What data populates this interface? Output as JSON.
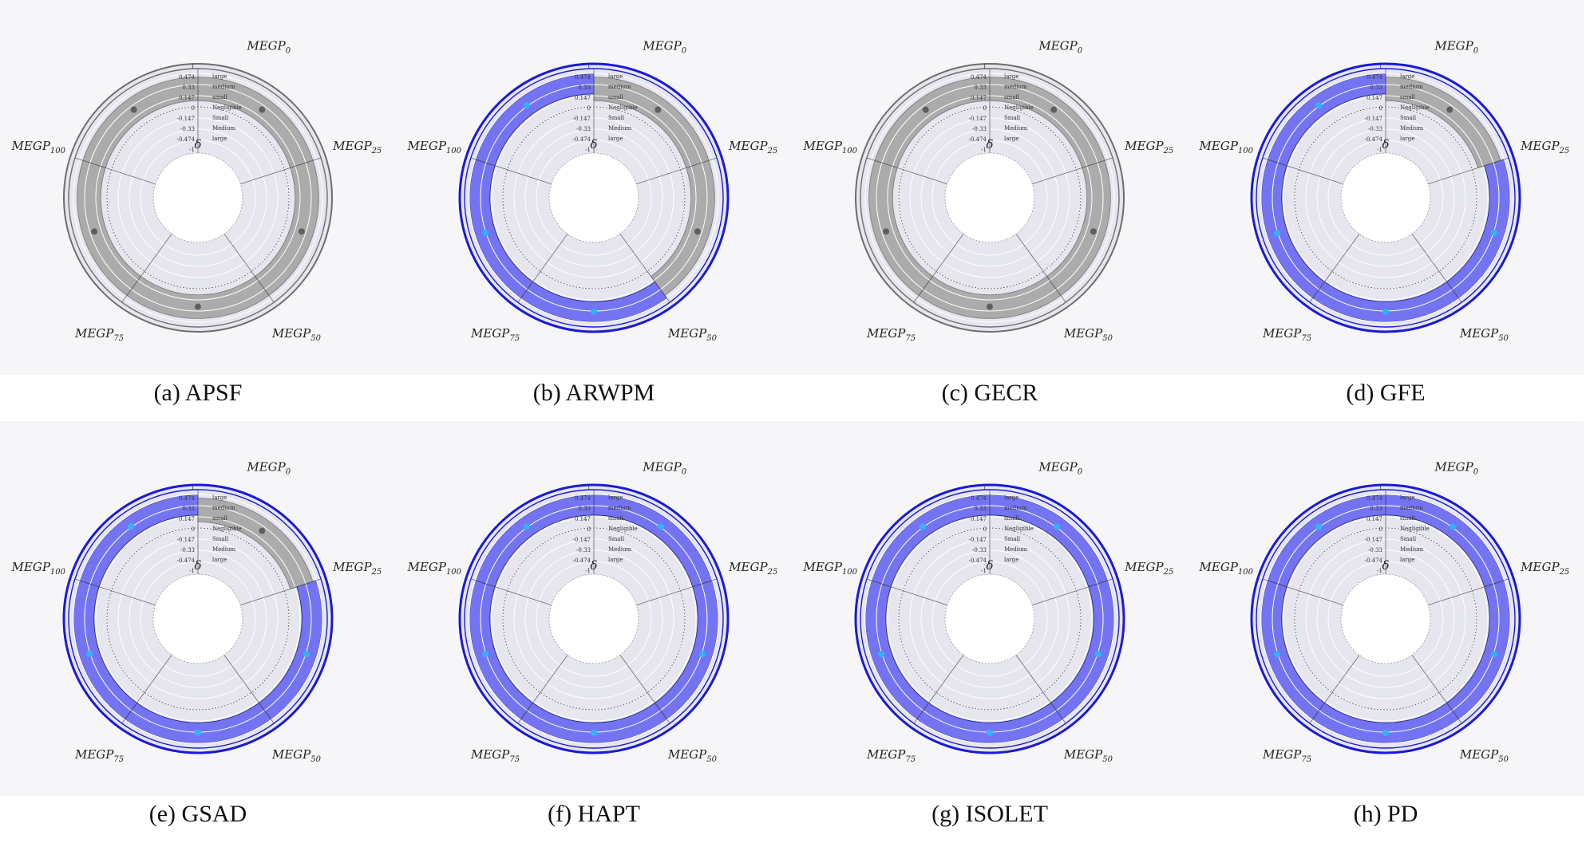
{
  "colors": {
    "bg_panel": "#f6f6f8",
    "disc": "#e6e6ef",
    "gray_band": "#a8a8a8",
    "gray_point": "#5f5f5f",
    "gray_rim": "#6d6d6d",
    "blue_band": "#6e6ef2",
    "blue_point": "#2fb4f5",
    "blue_rim": "#1a1ad6",
    "grid": "#ffffff"
  },
  "axis_main": "MEGP",
  "center_symbol": "δ",
  "radial_ticks": [
    "1",
    "0.474",
    "0.33",
    "0.147",
    "0",
    "-0.147",
    "-0.33",
    "-0.474",
    "-1"
  ],
  "magnitude_labels": [
    "large",
    "medium",
    "small",
    "Negligible",
    "Small",
    "Medium",
    "large"
  ],
  "chart_data": [
    {
      "type": "polar_band",
      "caption": "(a) APSF",
      "rim_color": "gray",
      "axes": [
        {
          "label": "MEGP",
          "sub": "0",
          "value": 0.1,
          "highlight": "gray"
        },
        {
          "label": "MEGP",
          "sub": "25",
          "value": 0.1,
          "highlight": "gray"
        },
        {
          "label": "MEGP",
          "sub": "50",
          "value": 0.1,
          "highlight": "gray"
        },
        {
          "label": "MEGP",
          "sub": "75",
          "value": 0.1,
          "highlight": "gray"
        },
        {
          "label": "MEGP",
          "sub": "100",
          "value": 0.1,
          "highlight": "gray"
        }
      ]
    },
    {
      "type": "polar_band",
      "caption": "(b) ARWPM",
      "rim_color": "blue",
      "axes": [
        {
          "label": "MEGP",
          "sub": "0",
          "value": 0.2,
          "highlight": "gray"
        },
        {
          "label": "MEGP",
          "sub": "25",
          "value": 0.15,
          "highlight": "gray"
        },
        {
          "label": "MEGP",
          "sub": "50",
          "value": 0.7,
          "highlight": "blue"
        },
        {
          "label": "MEGP",
          "sub": "75",
          "value": 0.7,
          "highlight": "blue"
        },
        {
          "label": "MEGP",
          "sub": "100",
          "value": 0.7,
          "highlight": "blue"
        }
      ]
    },
    {
      "type": "polar_band",
      "caption": "(c) GECR",
      "rim_color": "gray",
      "axes": [
        {
          "label": "MEGP",
          "sub": "0",
          "value": 0.1,
          "highlight": "gray"
        },
        {
          "label": "MEGP",
          "sub": "25",
          "value": 0.1,
          "highlight": "gray"
        },
        {
          "label": "MEGP",
          "sub": "50",
          "value": 0.1,
          "highlight": "gray"
        },
        {
          "label": "MEGP",
          "sub": "75",
          "value": 0.1,
          "highlight": "gray"
        },
        {
          "label": "MEGP",
          "sub": "100",
          "value": 0.1,
          "highlight": "gray"
        }
      ]
    },
    {
      "type": "polar_band",
      "caption": "(d) GFE",
      "rim_color": "blue",
      "axes": [
        {
          "label": "MEGP",
          "sub": "0",
          "value": 0.2,
          "highlight": "gray"
        },
        {
          "label": "MEGP",
          "sub": "25",
          "value": 0.8,
          "highlight": "blue"
        },
        {
          "label": "MEGP",
          "sub": "50",
          "value": 0.8,
          "highlight": "blue"
        },
        {
          "label": "MEGP",
          "sub": "75",
          "value": 0.8,
          "highlight": "blue"
        },
        {
          "label": "MEGP",
          "sub": "100",
          "value": 0.8,
          "highlight": "blue"
        }
      ]
    },
    {
      "type": "polar_band",
      "caption": "(e) GSAD",
      "rim_color": "blue",
      "axes": [
        {
          "label": "MEGP",
          "sub": "0",
          "value": 0.2,
          "highlight": "gray"
        },
        {
          "label": "MEGP",
          "sub": "25",
          "value": 0.8,
          "highlight": "blue"
        },
        {
          "label": "MEGP",
          "sub": "50",
          "value": 0.8,
          "highlight": "blue"
        },
        {
          "label": "MEGP",
          "sub": "75",
          "value": 0.8,
          "highlight": "blue"
        },
        {
          "label": "MEGP",
          "sub": "100",
          "value": 0.8,
          "highlight": "blue"
        }
      ]
    },
    {
      "type": "polar_band",
      "caption": "(f) HAPT",
      "rim_color": "blue",
      "axes": [
        {
          "label": "MEGP",
          "sub": "0",
          "value": 0.95,
          "highlight": "blue"
        },
        {
          "label": "MEGP",
          "sub": "25",
          "value": 1.0,
          "highlight": "blue"
        },
        {
          "label": "MEGP",
          "sub": "50",
          "value": 1.0,
          "highlight": "blue"
        },
        {
          "label": "MEGP",
          "sub": "75",
          "value": 1.0,
          "highlight": "blue"
        },
        {
          "label": "MEGP",
          "sub": "100",
          "value": 1.0,
          "highlight": "blue"
        }
      ]
    },
    {
      "type": "polar_band",
      "caption": "(g) ISOLET",
      "rim_color": "blue",
      "axes": [
        {
          "label": "MEGP",
          "sub": "0",
          "value": 0.8,
          "highlight": "blue"
        },
        {
          "label": "MEGP",
          "sub": "25",
          "value": 0.8,
          "highlight": "blue"
        },
        {
          "label": "MEGP",
          "sub": "50",
          "value": 0.8,
          "highlight": "blue"
        },
        {
          "label": "MEGP",
          "sub": "75",
          "value": 0.8,
          "highlight": "blue"
        },
        {
          "label": "MEGP",
          "sub": "100",
          "value": 0.8,
          "highlight": "blue"
        }
      ]
    },
    {
      "type": "polar_band",
      "caption": "(h) PD",
      "rim_color": "blue",
      "axes": [
        {
          "label": "MEGP",
          "sub": "0",
          "value": 0.55,
          "highlight": "blue"
        },
        {
          "label": "MEGP",
          "sub": "25",
          "value": 0.8,
          "highlight": "blue"
        },
        {
          "label": "MEGP",
          "sub": "50",
          "value": 0.8,
          "highlight": "blue"
        },
        {
          "label": "MEGP",
          "sub": "75",
          "value": 0.8,
          "highlight": "blue"
        },
        {
          "label": "MEGP",
          "sub": "100",
          "value": 0.8,
          "highlight": "blue"
        }
      ]
    }
  ]
}
